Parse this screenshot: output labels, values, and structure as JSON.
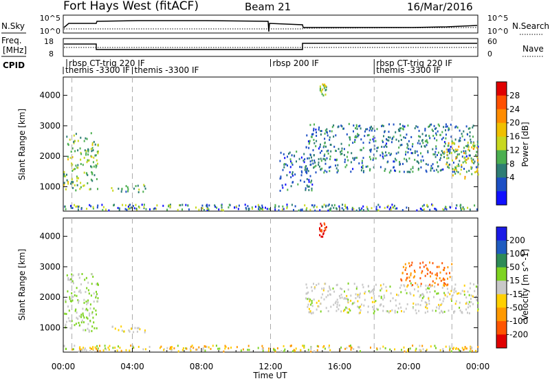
{
  "header": {
    "station": "Fort Hays West (fitACF)",
    "beam": "Beam 21",
    "date": "16/Mar/2016"
  },
  "noise_panel": {
    "left_label": "N.Sky",
    "right_label": "N.Search",
    "left_ticks": [
      "10^5",
      "10^0"
    ],
    "right_ticks": [
      "10^5",
      "10^0"
    ]
  },
  "freq_panel": {
    "left_label_1": "Freq.",
    "left_label_2": "[MHz]",
    "right_label": "Nave",
    "left_ticks": [
      "18",
      "8"
    ],
    "right_ticks": [
      "60",
      "0"
    ]
  },
  "cpid": {
    "label": "CPID",
    "segments": [
      {
        "start": 0.2,
        "end": 4.0,
        "row": 0,
        "text": "rbsp CT-trig 220 IF"
      },
      {
        "start": 0.0,
        "end": 4.0,
        "row": 1,
        "text": "themis -3300 IF"
      },
      {
        "start": 4.0,
        "end": 12.0,
        "row": 1,
        "text": "themis -3300 IF"
      },
      {
        "start": 12.0,
        "end": 18.0,
        "row": 0,
        "text": "rbsp 200 IF"
      },
      {
        "start": 18.0,
        "end": 22.0,
        "row": 0,
        "text": "rbsp CT-trig 220 IF"
      },
      {
        "start": 18.0,
        "end": 22.0,
        "row": 1,
        "text": "themis -3300 IF"
      }
    ]
  },
  "power_panel": {
    "ylabel": "Slant Range [km]",
    "colorbar_label": "Power [dB]",
    "colorbar_ticks": [
      "28",
      "24",
      "20",
      "16",
      "12",
      "8",
      "4"
    ],
    "colors": [
      "#1010ff",
      "#1c4fc4",
      "#2e7d74",
      "#4caf50",
      "#c8d820",
      "#f0c000",
      "#ff8c00",
      "#ff5000",
      "#e00000"
    ]
  },
  "velocity_panel": {
    "ylabel": "Slant Range [km]",
    "colorbar_label": "Velocity [m s^-1]",
    "colorbar_ticks": [
      "200",
      "100",
      "50",
      "15",
      "-15",
      "-50",
      "-100",
      "-200"
    ],
    "colors": [
      "#1a1ae6",
      "#1f5cc0",
      "#2e8b57",
      "#7ed321",
      "#c8c8c8",
      "#ffd000",
      "#ff9900",
      "#ff5500",
      "#e00000"
    ]
  },
  "xaxis": {
    "label": "Time UT",
    "ticks": [
      "00:00",
      "04:00",
      "08:00",
      "12:00",
      "16:00",
      "20:00",
      "00:00"
    ]
  },
  "chart_data": {
    "type": "heatmap",
    "title": "Fort Hays West (fitACF)",
    "subtitle": "Beam 21",
    "date": "16/Mar/2016",
    "xlabel": "Time UT",
    "xlim_hours": [
      0,
      24
    ],
    "x_ticks": [
      "00:00",
      "04:00",
      "08:00",
      "12:00",
      "16:00",
      "20:00",
      "00:00"
    ],
    "ylabel": "Slant Range [km]",
    "ylim": [
      200,
      4600
    ],
    "y_ticks": [
      1000,
      2000,
      3000,
      4000
    ],
    "power_range_db": [
      0,
      30
    ],
    "velocity_range_ms": [
      -250,
      250
    ],
    "mode_changes_hours": [
      0.5,
      4.0,
      12.0,
      18.0,
      22.5
    ],
    "frequency_mhz": [
      {
        "start": 0,
        "end": 2,
        "value": 15
      },
      {
        "start": 2,
        "end": 14,
        "value": 12
      },
      {
        "start": 14,
        "end": 24,
        "value": 15
      }
    ],
    "nave": [
      {
        "start": 0,
        "end": 24,
        "value": 25
      }
    ],
    "power_regions": [
      {
        "t0": 0.0,
        "t1": 2.0,
        "r0": 900,
        "r1": 2800,
        "level": 12
      },
      {
        "t0": 2.7,
        "t1": 4.8,
        "r0": 850,
        "r1": 1100,
        "level": 10
      },
      {
        "t0": 12.5,
        "t1": 14.5,
        "r0": 900,
        "r1": 2200,
        "level": 6
      },
      {
        "t0": 14.0,
        "t1": 24.0,
        "r0": 1500,
        "r1": 3100,
        "level": 8
      },
      {
        "t0": 22.0,
        "t1": 24.0,
        "r0": 1300,
        "r1": 2500,
        "level": 16
      },
      {
        "t0": 14.8,
        "t1": 15.2,
        "r0": 4000,
        "r1": 4400,
        "level": 14
      }
    ],
    "velocity_regions": [
      {
        "t0": 0.0,
        "t1": 2.0,
        "r0": 900,
        "r1": 2800,
        "velocity": 30
      },
      {
        "t0": 2.7,
        "t1": 4.8,
        "r0": 850,
        "r1": 1100,
        "velocity": 0
      },
      {
        "t0": 14.0,
        "t1": 24.0,
        "r0": 1500,
        "r1": 2500,
        "velocity": 0
      },
      {
        "t0": 19.5,
        "t1": 22.5,
        "r0": 2400,
        "r1": 3200,
        "velocity": -150
      },
      {
        "t0": 14.8,
        "t1": 15.2,
        "r0": 4000,
        "r1": 4500,
        "velocity": -200
      }
    ]
  }
}
